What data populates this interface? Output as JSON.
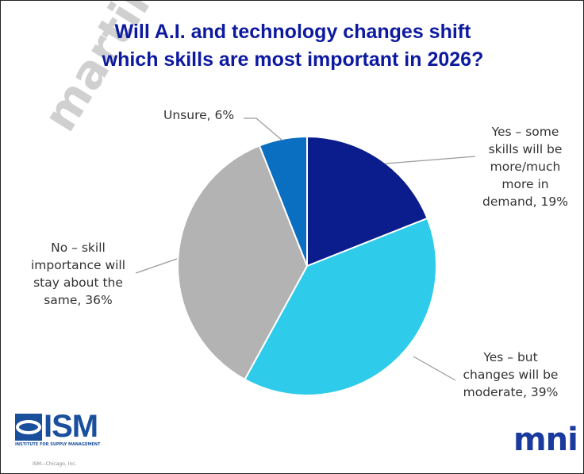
{
  "chart_data": {
    "type": "pie",
    "title_lines": [
      "Will A.I. and technology changes shift",
      "which skills are most important in 2026?"
    ],
    "slices": [
      {
        "label": "Yes – some skills will be more/much more in demand",
        "value": 19,
        "label_lines": [
          "Yes – some",
          "skills will be",
          "more/much",
          "more in",
          "demand, 19%"
        ],
        "color": "#0b1c8c"
      },
      {
        "label": "Yes – but changes will be moderate",
        "value": 39,
        "label_lines": [
          "Yes – but",
          "changes will be",
          "moderate, 39%"
        ],
        "color": "#2ecbea"
      },
      {
        "label": "No – skill importance will stay about the same",
        "value": 36,
        "label_lines": [
          "No – skill",
          "importance will",
          "stay about the",
          "same, 36%"
        ],
        "color": "#b3b3b3"
      },
      {
        "label": "Unsure",
        "value": 6,
        "label_lines": [
          "Unsure, 6%"
        ],
        "color": "#0a6fc0"
      }
    ],
    "start_angle": "top, clockwise",
    "legend": "none"
  },
  "logos": {
    "ism": "ISM",
    "ism_sub": "INSTITUTE FOR SUPPLY MANAGEMENT",
    "ism_foot": "ISM—Chicago, Inc.",
    "mni": "mni"
  },
  "watermark": "martindan"
}
